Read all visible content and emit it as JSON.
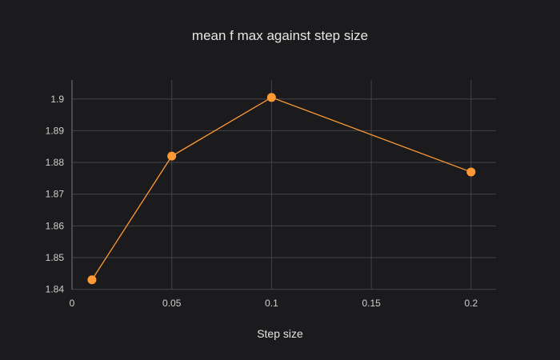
{
  "chart_data": {
    "type": "line",
    "title": "mean f max against step size",
    "xlabel": "Step size",
    "ylabel": "",
    "x": [
      0.01,
      0.05,
      0.1,
      0.2
    ],
    "series": [
      {
        "values": [
          1.843,
          1.882,
          1.9005,
          1.877
        ],
        "color": "#ff9933"
      }
    ],
    "xlim": [
      0,
      0.2125
    ],
    "ylim": [
      1.8399,
      1.906
    ],
    "xticks": [
      0,
      0.05,
      0.1,
      0.15,
      0.2
    ],
    "xtick_labels": [
      "0",
      "0.05",
      "0.1",
      "0.15",
      "0.2"
    ],
    "yticks": [
      1.84,
      1.85,
      1.86,
      1.87,
      1.88,
      1.89,
      1.9
    ],
    "ytick_labels": [
      "1.84",
      "1.85",
      "1.86",
      "1.87",
      "1.88",
      "1.89",
      "1.9"
    ],
    "grid": true,
    "legend": "none",
    "colors": {
      "background": "#1b1b1d",
      "grid": "#444446",
      "zeroline": "#5a5a5c",
      "text": "#e6e6e6",
      "tick_text": "#d0d0d0"
    }
  }
}
